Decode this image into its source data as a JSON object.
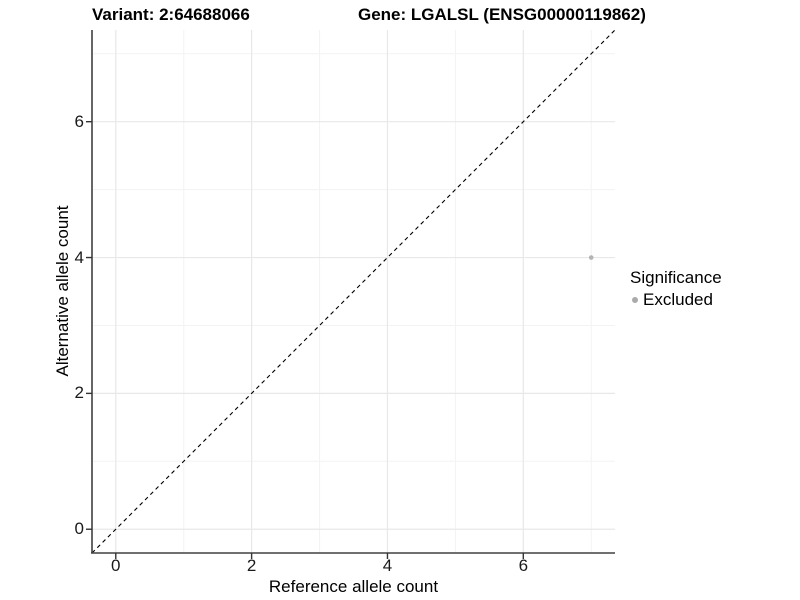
{
  "titles": {
    "left": "Variant: 2:64688066",
    "right": "Gene: LGALSL (ENSG00000119862)"
  },
  "chart_data": {
    "type": "scatter",
    "xlabel": "Reference allele count",
    "ylabel": "Alternative allele count",
    "xlim": [
      -0.35,
      7.35
    ],
    "ylim": [
      -0.35,
      7.35
    ],
    "x_ticks": [
      0,
      2,
      4,
      6
    ],
    "y_ticks": [
      0,
      2,
      4,
      6
    ],
    "x_minor_ticks": [
      1,
      3,
      5,
      7
    ],
    "y_minor_ticks": [
      1,
      3,
      5,
      7
    ],
    "grid": true,
    "identity_line": {
      "style": "dashed",
      "color": "#000000"
    },
    "series": [
      {
        "name": "Excluded",
        "color": "#b3b3b3",
        "points": [
          {
            "x": 7,
            "y": 4
          }
        ]
      }
    ],
    "legend": {
      "title": "Significance",
      "position": "right",
      "items": [
        {
          "label": "Excluded",
          "color": "#aaaaaa"
        }
      ]
    }
  },
  "style_colors": {
    "axis_line": "#404040",
    "tick_mark": "#333333",
    "grid_major": "#e8e8e8",
    "grid_minor": "#f3f3f3",
    "panel_background": "#ffffff"
  }
}
